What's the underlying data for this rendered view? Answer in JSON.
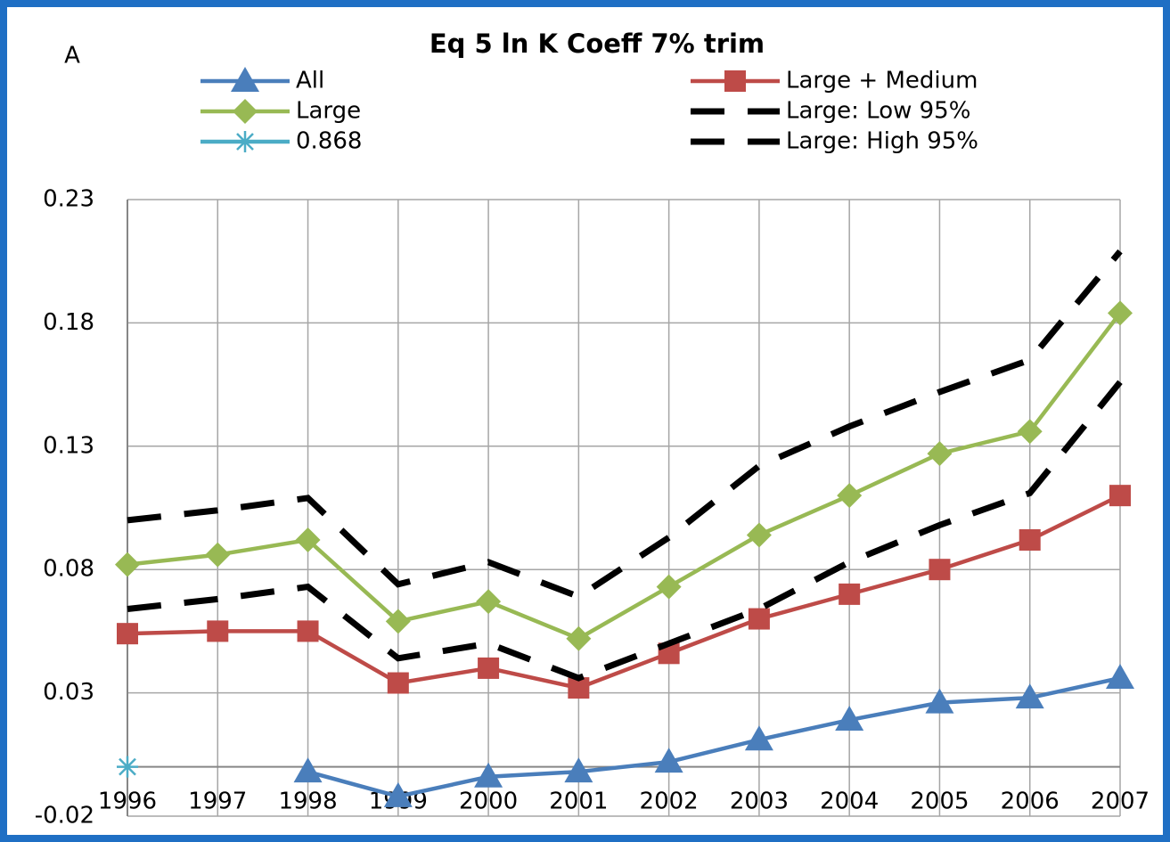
{
  "chart_data": {
    "type": "line",
    "title": "Eq 5 ln K Coeff 7% trim",
    "panel_label": "A",
    "categories": [
      "1996",
      "1997",
      "1998",
      "1999",
      "2000",
      "2001",
      "2002",
      "2003",
      "2004",
      "2005",
      "2006",
      "2007"
    ],
    "ylim": [
      -0.02,
      0.23
    ],
    "yticks": [
      -0.02,
      0.03,
      0.08,
      0.13,
      0.18,
      0.23
    ],
    "grid": true,
    "series": [
      {
        "name": "All",
        "color": "#4a7ebb",
        "marker": "triangle",
        "dash": false,
        "values": [
          null,
          null,
          -0.002,
          -0.012,
          -0.004,
          -0.002,
          0.002,
          0.011,
          0.019,
          0.026,
          0.028,
          0.036
        ]
      },
      {
        "name": "Large + Medium",
        "color": "#be4b48",
        "marker": "square",
        "dash": false,
        "values": [
          0.054,
          0.055,
          0.055,
          0.034,
          0.04,
          0.032,
          0.046,
          0.06,
          0.07,
          0.08,
          0.092,
          0.11
        ]
      },
      {
        "name": "Large",
        "color": "#98b954",
        "marker": "diamond",
        "dash": false,
        "values": [
          0.082,
          0.086,
          0.092,
          0.059,
          0.067,
          0.052,
          0.073,
          0.094,
          0.11,
          0.127,
          0.136,
          0.184
        ]
      },
      {
        "name": "Large: Low 95%",
        "color": "#000000",
        "marker": "none",
        "dash": true,
        "values": [
          0.064,
          0.068,
          0.073,
          0.044,
          0.05,
          0.036,
          0.05,
          0.064,
          0.083,
          0.098,
          0.111,
          0.156
        ]
      },
      {
        "name": "0.868",
        "color": "#4bacc6",
        "marker": "star",
        "dash": false,
        "values": [
          0,
          null,
          null,
          null,
          null,
          null,
          null,
          null,
          null,
          null,
          null,
          null
        ]
      },
      {
        "name": "Large: High 95%",
        "color": "#000000",
        "marker": "none",
        "dash": true,
        "values": [
          0.1,
          0.104,
          0.109,
          0.074,
          0.083,
          0.069,
          0.093,
          0.122,
          0.138,
          0.152,
          0.165,
          0.209
        ]
      }
    ]
  }
}
